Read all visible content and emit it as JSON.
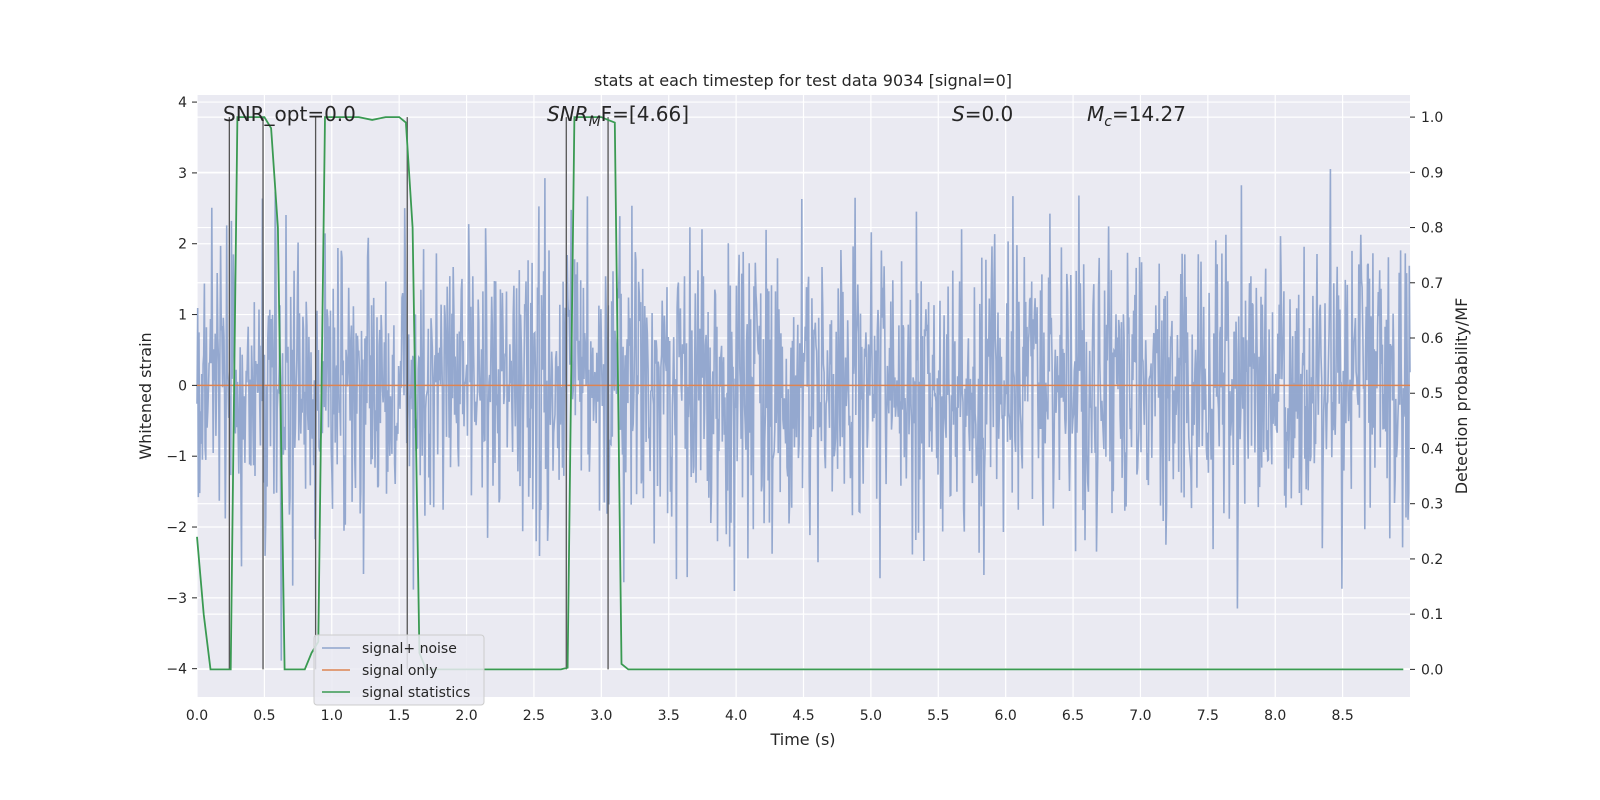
{
  "chart_data": {
    "type": "line",
    "title": "stats at each timestep for test data 9034 [signal=0]",
    "xlabel": "Time (s)",
    "ylabel": "Whitened strain",
    "y2label": "Detection probability/MF",
    "xlim": [
      0.0,
      9.0
    ],
    "ylim": [
      -4.4,
      4.1
    ],
    "y2lim": [
      -0.05,
      1.04
    ],
    "xticks": [
      "0.0",
      "0.5",
      "1.0",
      "1.5",
      "2.0",
      "2.5",
      "3.0",
      "3.5",
      "4.0",
      "4.5",
      "5.0",
      "5.5",
      "6.0",
      "6.5",
      "7.0",
      "7.5",
      "8.0",
      "8.5"
    ],
    "yticks": [
      "4",
      "3",
      "2",
      "1",
      "0",
      "−1",
      "−2",
      "−3",
      "−4"
    ],
    "y2ticks": [
      "1.0",
      "0.9",
      "0.8",
      "0.7",
      "0.6",
      "0.5",
      "0.4",
      "0.3",
      "0.2",
      "0.1",
      "0.0"
    ],
    "annotations": {
      "snr_opt": "SNR_opt=0.0",
      "snr_mf_base": "SNR",
      "snr_mf_sub": "M",
      "snr_mf_rest": "F=[4.66]",
      "s_label": "S",
      "s_value": "=0.0",
      "mc_base": "M",
      "mc_sub": "c",
      "mc_value": "=14.27"
    },
    "legend": {
      "position": "lower-left",
      "entries": [
        "signal+ noise",
        "signal only",
        "signal statistics"
      ]
    },
    "colors": {
      "noise": "#8fa4cc",
      "signal": "#dd8452",
      "stats": "#3a9a52",
      "vlines": "#555555",
      "background": "#eaeaf2",
      "grid": "#ffffff"
    },
    "series": [
      {
        "name": "signal statistics",
        "axis": "right",
        "x": [
          0.0,
          0.05,
          0.1,
          0.15,
          0.2,
          0.25,
          0.3,
          0.35,
          0.4,
          0.45,
          0.5,
          0.55,
          0.6,
          0.65,
          0.7,
          0.75,
          0.8,
          0.85,
          0.9,
          0.95,
          1.0,
          1.1,
          1.2,
          1.3,
          1.4,
          1.5,
          1.55,
          1.6,
          1.65,
          1.7,
          1.75,
          1.8,
          2.0,
          2.5,
          2.7,
          2.75,
          2.8,
          2.85,
          2.9,
          3.0,
          3.05,
          3.1,
          3.15,
          3.2,
          4.0,
          5.0,
          6.0,
          7.0,
          8.0,
          8.95
        ],
        "y": [
          0.24,
          0.1,
          0.0,
          0.0,
          0.0,
          0.0,
          1.0,
          1.0,
          1.0,
          1.0,
          1.0,
          0.98,
          0.8,
          0.0,
          0.0,
          0.0,
          0.0,
          0.03,
          0.05,
          1.0,
          1.0,
          1.0,
          1.0,
          0.995,
          1.0,
          1.0,
          0.99,
          0.8,
          0.03,
          0.0,
          0.0,
          0.0,
          0.0,
          0.0,
          0.0,
          0.003,
          1.0,
          1.0,
          1.0,
          1.0,
          0.995,
          0.99,
          0.01,
          0.0,
          0.0,
          0.0,
          0.0,
          0.0,
          0.0,
          0.0
        ]
      },
      {
        "name": "signal only",
        "axis": "left",
        "x": [
          0.0,
          9.0
        ],
        "y": [
          0.0,
          0.0
        ]
      }
    ],
    "noise_series": {
      "name": "signal+ noise",
      "axis": "left",
      "t_start": 0.0,
      "t_end": 9.0,
      "n_samples": 1800,
      "std": 1.0,
      "seed": 9034
    },
    "vlines_x": [
      0.24,
      0.49,
      0.88,
      1.56,
      2.74,
      3.05
    ]
  }
}
